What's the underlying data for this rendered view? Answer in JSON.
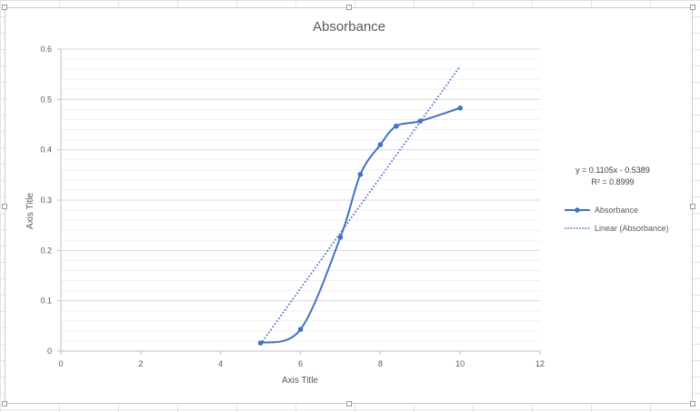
{
  "chart_data": {
    "type": "scatter",
    "title": "Absorbance",
    "xlabel": "Axis Title",
    "ylabel": "Axis Title",
    "xlim": [
      0,
      12
    ],
    "ylim": [
      0,
      0.6
    ],
    "x_ticks": [
      "0",
      "2",
      "4",
      "6",
      "8",
      "10",
      "12"
    ],
    "y_ticks": [
      "0",
      "0.1",
      "0.2",
      "0.3",
      "0.4",
      "0.5",
      "0.6"
    ],
    "grid": true,
    "legend_position": "right",
    "series": [
      {
        "name": "Absorbance",
        "style": "smooth-line-markers",
        "color": "#4472C4",
        "x": [
          5,
          6,
          7,
          7.5,
          8,
          8.4,
          9,
          10
        ],
        "y": [
          0.016,
          0.043,
          0.226,
          0.351,
          0.41,
          0.447,
          0.457,
          0.483
        ]
      },
      {
        "name": "Linear (Absorbance)",
        "style": "dotted-trendline",
        "color": "#4472C4",
        "slope": 0.1105,
        "intercept": -0.5389,
        "x_range": [
          5,
          10
        ]
      }
    ],
    "trendline_equation": "y = 0.1105x - 0.5389",
    "trendline_r2": "R² = 0.8999"
  }
}
